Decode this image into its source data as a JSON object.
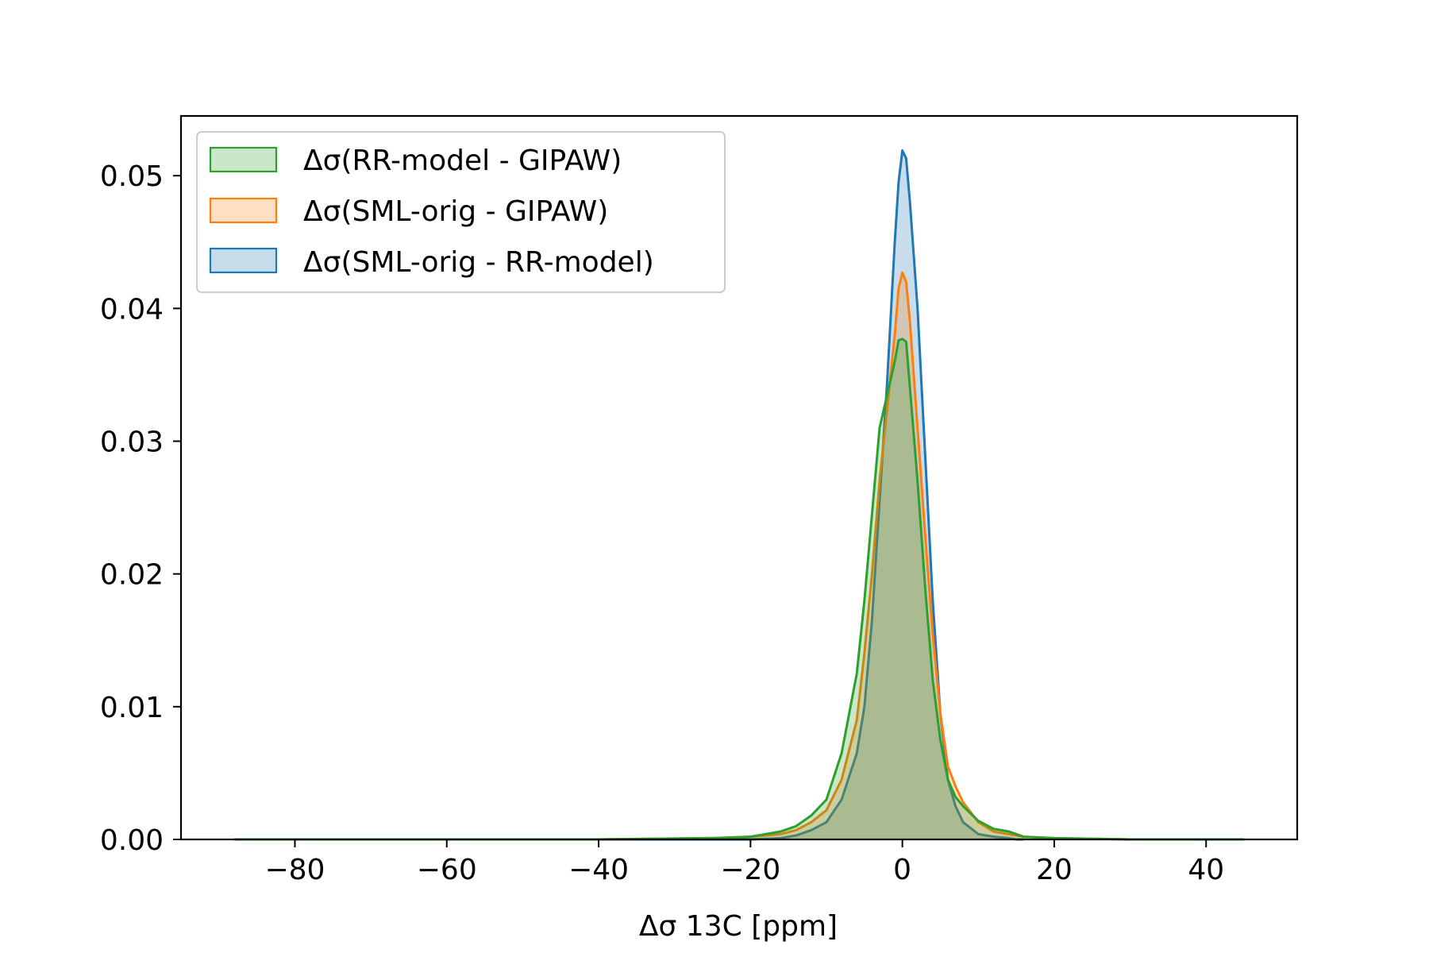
{
  "chart_data": {
    "type": "area",
    "xlabel": "Δσ 13C [ppm]",
    "ylabel": "",
    "xlim": [
      -95,
      52
    ],
    "ylim": [
      0,
      0.0545
    ],
    "xticks": [
      -80,
      -60,
      -40,
      -20,
      0,
      20,
      40
    ],
    "yticks": [
      0.0,
      0.01,
      0.02,
      0.03,
      0.04,
      0.05
    ],
    "xtick_labels": [
      "−80",
      "−60",
      "−40",
      "−20",
      "0",
      "20",
      "40"
    ],
    "ytick_labels": [
      "0.00",
      "0.01",
      "0.02",
      "0.03",
      "0.04",
      "0.05"
    ],
    "grid": false,
    "legend_position": "upper-left",
    "series": [
      {
        "name": "Δσ(RR-model - GIPAW)",
        "color": "#2ca02c",
        "x": [
          -88,
          -60,
          -40,
          -25,
          -20,
          -16,
          -14,
          -12,
          -10,
          -8,
          -6,
          -5,
          -4,
          -3,
          -2,
          -1,
          -0.5,
          0,
          0.5,
          1,
          2,
          3,
          4,
          5,
          6,
          7,
          8,
          10,
          12,
          14,
          16,
          20,
          30,
          45
        ],
        "y": [
          0.0,
          0.0,
          0.0,
          0.0001,
          0.0002,
          0.0006,
          0.001,
          0.0018,
          0.003,
          0.0065,
          0.0125,
          0.018,
          0.0245,
          0.031,
          0.0335,
          0.036,
          0.0376,
          0.0377,
          0.0375,
          0.034,
          0.027,
          0.019,
          0.012,
          0.0075,
          0.0045,
          0.0032,
          0.0025,
          0.0014,
          0.0008,
          0.0006,
          0.0002,
          0.0001,
          0.0,
          0.0
        ]
      },
      {
        "name": "Δσ(SML-orig - GIPAW)",
        "color": "#ff7f0e",
        "x": [
          -88,
          -60,
          -40,
          -25,
          -20,
          -16,
          -14,
          -12,
          -10,
          -8,
          -6,
          -5,
          -4,
          -3,
          -2,
          -1,
          -0.5,
          0,
          0.5,
          1,
          2,
          3,
          4,
          5,
          6,
          7,
          8,
          10,
          12,
          14,
          16,
          20,
          30,
          45
        ],
        "y": [
          0.0,
          0.0,
          0.0,
          0.0001,
          0.0002,
          0.0004,
          0.0007,
          0.0013,
          0.0022,
          0.0045,
          0.009,
          0.014,
          0.02,
          0.027,
          0.0325,
          0.038,
          0.0415,
          0.0427,
          0.042,
          0.039,
          0.031,
          0.023,
          0.0155,
          0.0095,
          0.0055,
          0.004,
          0.0028,
          0.0013,
          0.0006,
          0.0004,
          0.0002,
          0.0001,
          0.0,
          0.0
        ]
      },
      {
        "name": "Δσ(SML-orig - RR-model)",
        "color": "#1f77b4",
        "x": [
          -50,
          -40,
          -25,
          -20,
          -16,
          -14,
          -12,
          -10,
          -8,
          -6,
          -5,
          -4,
          -3,
          -2,
          -1,
          -0.5,
          0,
          0.5,
          1,
          2,
          3,
          4,
          5,
          6,
          7,
          8,
          10,
          12,
          14,
          15,
          16
        ],
        "y": [
          0.0,
          0.0,
          0.0,
          0.0,
          0.0001,
          0.0003,
          0.0007,
          0.0013,
          0.003,
          0.0065,
          0.01,
          0.0165,
          0.0255,
          0.0345,
          0.045,
          0.0495,
          0.0519,
          0.0513,
          0.048,
          0.04,
          0.029,
          0.018,
          0.0095,
          0.0045,
          0.0025,
          0.0013,
          0.0004,
          0.0002,
          0.0001,
          0.0,
          0.0
        ]
      }
    ]
  }
}
